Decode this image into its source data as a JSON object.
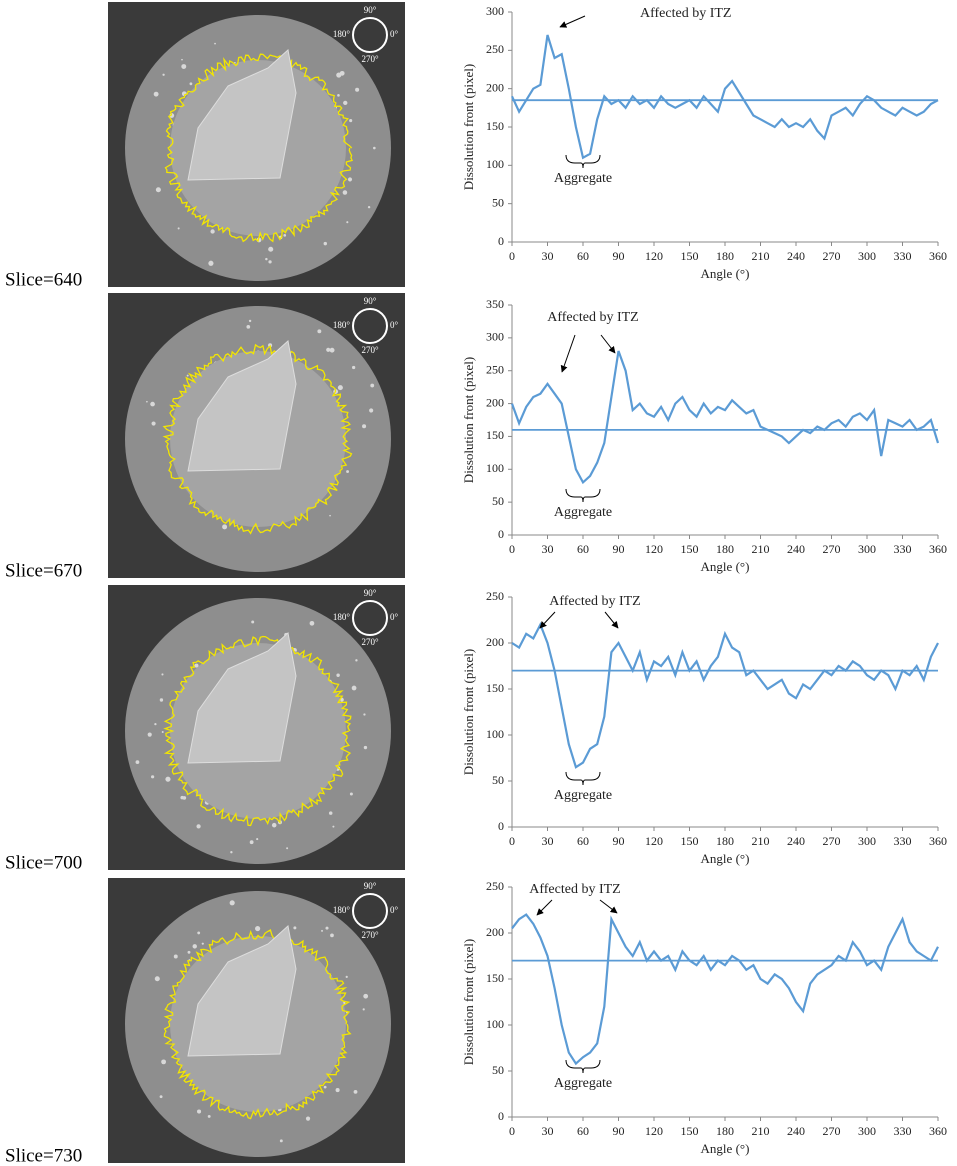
{
  "images": [
    {
      "label": "Slice=640",
      "orientation": {
        "top": "90°",
        "left": "180°",
        "right": "0°",
        "bottom": "270°"
      }
    },
    {
      "label": "Slice=670",
      "orientation": {
        "top": "90°",
        "left": "180°",
        "right": "0°",
        "bottom": "270°"
      }
    },
    {
      "label": "Slice=700",
      "orientation": {
        "top": "90°",
        "left": "180°",
        "right": "0°",
        "bottom": "270°"
      }
    },
    {
      "label": "Slice=730",
      "orientation": {
        "top": "90°",
        "left": "180°",
        "right": "0°",
        "bottom": "270°"
      }
    }
  ],
  "chart_data": [
    {
      "type": "line",
      "x_label": "Angle (°)",
      "y_label": "Dissolution front (pixel)",
      "annotations": [
        "Affected by ITZ",
        "Aggregate"
      ],
      "xlim": [
        0,
        360
      ],
      "xticks": [
        0,
        30,
        60,
        90,
        120,
        150,
        180,
        210,
        240,
        270,
        300,
        330,
        360
      ],
      "ylim": [
        0,
        300
      ],
      "yticks": [
        0,
        50,
        100,
        150,
        200,
        250,
        300
      ],
      "reference_y": 185,
      "x": [
        0,
        6,
        12,
        18,
        24,
        30,
        36,
        42,
        48,
        54,
        60,
        66,
        72,
        78,
        84,
        90,
        96,
        102,
        108,
        114,
        120,
        126,
        132,
        138,
        144,
        150,
        156,
        162,
        168,
        174,
        180,
        186,
        192,
        198,
        204,
        210,
        216,
        222,
        228,
        234,
        240,
        246,
        252,
        258,
        264,
        270,
        276,
        282,
        288,
        294,
        300,
        306,
        312,
        318,
        324,
        330,
        336,
        342,
        348,
        354,
        360
      ],
      "series": [
        {
          "color": "#5b9bd5",
          "values": [
            190,
            170,
            185,
            200,
            205,
            270,
            240,
            245,
            200,
            150,
            110,
            115,
            160,
            190,
            180,
            185,
            175,
            190,
            180,
            185,
            175,
            190,
            180,
            175,
            180,
            185,
            175,
            190,
            180,
            170,
            200,
            210,
            195,
            180,
            165,
            160,
            155,
            150,
            160,
            150,
            155,
            150,
            160,
            145,
            135,
            165,
            170,
            175,
            165,
            180,
            190,
            185,
            175,
            170,
            165,
            175,
            170,
            165,
            170,
            180,
            185
          ]
        }
      ]
    },
    {
      "type": "line",
      "x_label": "Angle (°)",
      "y_label": "Dissolution front (pixel)",
      "annotations": [
        "Affected by ITZ",
        "Aggregate"
      ],
      "xlim": [
        0,
        360
      ],
      "xticks": [
        0,
        30,
        60,
        90,
        120,
        150,
        180,
        210,
        240,
        270,
        300,
        330,
        360
      ],
      "ylim": [
        0,
        350
      ],
      "yticks": [
        0,
        50,
        100,
        150,
        200,
        250,
        300,
        350
      ],
      "reference_y": 160,
      "x": [
        0,
        6,
        12,
        18,
        24,
        30,
        36,
        42,
        48,
        54,
        60,
        66,
        72,
        78,
        84,
        90,
        96,
        102,
        108,
        114,
        120,
        126,
        132,
        138,
        144,
        150,
        156,
        162,
        168,
        174,
        180,
        186,
        192,
        198,
        204,
        210,
        216,
        222,
        228,
        234,
        240,
        246,
        252,
        258,
        264,
        270,
        276,
        282,
        288,
        294,
        300,
        306,
        312,
        318,
        324,
        330,
        336,
        342,
        348,
        354,
        360
      ],
      "series": [
        {
          "color": "#5b9bd5",
          "values": [
            200,
            170,
            195,
            210,
            215,
            230,
            215,
            200,
            150,
            100,
            80,
            90,
            110,
            140,
            210,
            280,
            250,
            190,
            200,
            185,
            180,
            195,
            175,
            200,
            210,
            190,
            180,
            200,
            185,
            195,
            190,
            205,
            195,
            185,
            190,
            165,
            160,
            155,
            150,
            140,
            150,
            160,
            155,
            165,
            160,
            170,
            175,
            165,
            180,
            185,
            175,
            190,
            120,
            175,
            170,
            165,
            175,
            160,
            165,
            175,
            140
          ]
        }
      ]
    },
    {
      "type": "line",
      "x_label": "Angle (°)",
      "y_label": "Dissolution front (pixel)",
      "annotations": [
        "Affected by ITZ",
        "Aggregate"
      ],
      "xlim": [
        0,
        360
      ],
      "xticks": [
        0,
        30,
        60,
        90,
        120,
        150,
        180,
        210,
        240,
        270,
        300,
        330,
        360
      ],
      "ylim": [
        0,
        250
      ],
      "yticks": [
        0,
        50,
        100,
        150,
        200,
        250
      ],
      "reference_y": 170,
      "x": [
        0,
        6,
        12,
        18,
        24,
        30,
        36,
        42,
        48,
        54,
        60,
        66,
        72,
        78,
        84,
        90,
        96,
        102,
        108,
        114,
        120,
        126,
        132,
        138,
        144,
        150,
        156,
        162,
        168,
        174,
        180,
        186,
        192,
        198,
        204,
        210,
        216,
        222,
        228,
        234,
        240,
        246,
        252,
        258,
        264,
        270,
        276,
        282,
        288,
        294,
        300,
        306,
        312,
        318,
        324,
        330,
        336,
        342,
        348,
        354,
        360
      ],
      "series": [
        {
          "color": "#5b9bd5",
          "values": [
            200,
            195,
            210,
            205,
            220,
            200,
            170,
            130,
            90,
            65,
            70,
            85,
            90,
            120,
            190,
            200,
            185,
            170,
            190,
            160,
            180,
            175,
            185,
            165,
            190,
            170,
            180,
            160,
            175,
            185,
            210,
            195,
            190,
            165,
            170,
            160,
            150,
            155,
            160,
            145,
            140,
            155,
            150,
            160,
            170,
            165,
            175,
            170,
            180,
            175,
            165,
            160,
            170,
            165,
            150,
            170,
            165,
            175,
            160,
            185,
            200
          ]
        }
      ]
    },
    {
      "type": "line",
      "x_label": "Angle (°)",
      "y_label": "Dissolution front (pixel)",
      "annotations": [
        "Affected by ITZ",
        "Aggregate"
      ],
      "xlim": [
        0,
        360
      ],
      "xticks": [
        0,
        30,
        60,
        90,
        120,
        150,
        180,
        210,
        240,
        270,
        300,
        330,
        360
      ],
      "ylim": [
        0,
        250
      ],
      "yticks": [
        0,
        50,
        100,
        150,
        200,
        250
      ],
      "reference_y": 170,
      "x": [
        0,
        6,
        12,
        18,
        24,
        30,
        36,
        42,
        48,
        54,
        60,
        66,
        72,
        78,
        84,
        90,
        96,
        102,
        108,
        114,
        120,
        126,
        132,
        138,
        144,
        150,
        156,
        162,
        168,
        174,
        180,
        186,
        192,
        198,
        204,
        210,
        216,
        222,
        228,
        234,
        240,
        246,
        252,
        258,
        264,
        270,
        276,
        282,
        288,
        294,
        300,
        306,
        312,
        318,
        324,
        330,
        336,
        342,
        348,
        354,
        360
      ],
      "series": [
        {
          "color": "#5b9bd5",
          "values": [
            205,
            215,
            220,
            210,
            195,
            175,
            140,
            100,
            70,
            58,
            65,
            70,
            80,
            120,
            215,
            200,
            185,
            175,
            190,
            170,
            180,
            170,
            175,
            160,
            180,
            170,
            165,
            175,
            160,
            170,
            165,
            175,
            170,
            160,
            165,
            150,
            145,
            155,
            150,
            140,
            125,
            115,
            145,
            155,
            160,
            165,
            175,
            170,
            190,
            180,
            165,
            170,
            160,
            185,
            200,
            215,
            190,
            180,
            175,
            170,
            185
          ]
        }
      ]
    }
  ]
}
